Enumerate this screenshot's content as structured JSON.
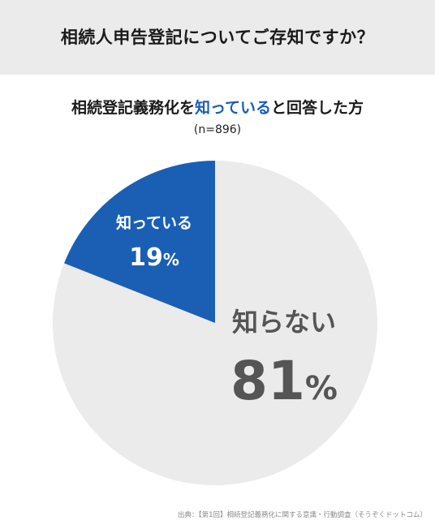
{
  "header": {
    "title": "相続人申告登記についてご存知ですか？"
  },
  "subtitle": {
    "prefix": "相続登記義務化を",
    "highlight": "知っている",
    "suffix": "と回答した方"
  },
  "sample_size": "(n=896)",
  "colors": {
    "header_band": "#ebebeb",
    "know": "#1a5fb4",
    "dont_know": "#ebebeb",
    "dont_know_text": "#555555",
    "know_text": "#ffffff"
  },
  "chart_data": {
    "type": "pie",
    "start_angle_deg": 0,
    "direction": "counterclockwise-from-top for first slice",
    "slices": [
      {
        "label": "知っている",
        "value": 19,
        "display": "19",
        "unit": "%",
        "color": "#1a5fb4"
      },
      {
        "label": "知らない",
        "value": 81,
        "display": "81",
        "unit": "%",
        "color": "#ebebeb"
      }
    ]
  },
  "source": "出典：【第1回】相続登記義務化に関する意識・行動調査（そうぞくドットコム）"
}
